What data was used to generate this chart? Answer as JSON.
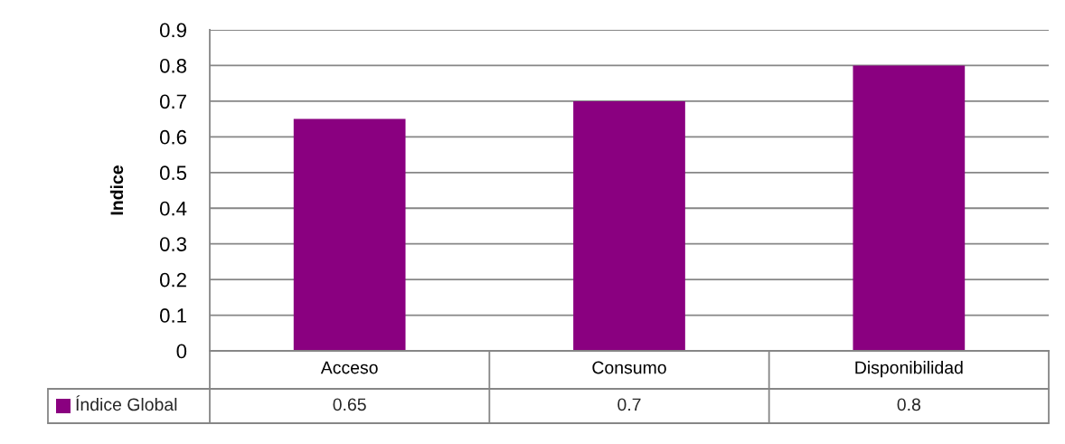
{
  "chart_data": {
    "type": "bar",
    "ylabel": "Indice",
    "categories": [
      "Acceso",
      "Consumo",
      "Disponibilidad"
    ],
    "series": [
      {
        "name": "Índice Global",
        "color": "#8a0080",
        "values": [
          0.65,
          0.7,
          0.8
        ]
      }
    ],
    "ylim": [
      0,
      0.9
    ],
    "yticks": [
      0,
      0.1,
      0.2,
      0.3,
      0.4,
      0.5,
      0.6,
      0.7,
      0.8,
      0.9
    ],
    "grid": "y",
    "legend": "bottom",
    "data_labels": true
  }
}
